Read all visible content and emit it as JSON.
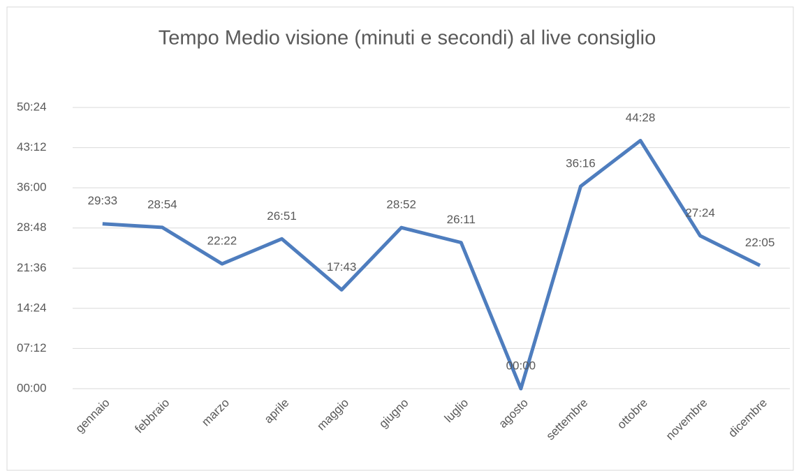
{
  "chart_data": {
    "type": "line",
    "title": "Tempo Medio visione (minuti e secondi) al live consiglio",
    "categories": [
      "gennaio",
      "febbraio",
      "marzo",
      "aprile",
      "maggio",
      "giugno",
      "luglio",
      "agosto",
      "settembre",
      "ottobre",
      "novembre",
      "dicembre"
    ],
    "series": [
      {
        "name": "Tempo medio",
        "color": "#4e7dbe",
        "values": [
          29.55,
          28.9,
          22.3667,
          26.85,
          17.7167,
          28.8667,
          26.1833,
          0,
          36.2667,
          44.4667,
          27.4,
          22.0833
        ],
        "value_labels": [
          "29:33",
          "28:54",
          "22:22",
          "26:51",
          "17:43",
          "28:52",
          "26:11",
          "00:00",
          "36:16",
          "44:28",
          "27:24",
          "22:05"
        ]
      }
    ],
    "ylim": [
      0,
      50.4
    ],
    "yticks": [
      {
        "value": 0,
        "label": "00:00"
      },
      {
        "value": 7.2,
        "label": "07:12"
      },
      {
        "value": 14.4,
        "label": "14:24"
      },
      {
        "value": 21.6,
        "label": "21:36"
      },
      {
        "value": 28.8,
        "label": "28:48"
      },
      {
        "value": 36,
        "label": "36:00"
      },
      {
        "value": 43.2,
        "label": "43:12"
      },
      {
        "value": 50.4,
        "label": "50:24"
      }
    ],
    "grid": true
  }
}
